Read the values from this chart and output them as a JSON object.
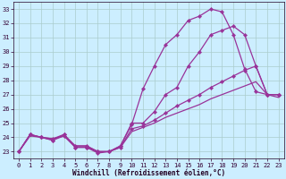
{
  "xlabel": "Windchill (Refroidissement éolien,°C)",
  "bg_color": "#cceeff",
  "grid_color": "#aacccc",
  "line_color": "#993399",
  "xlim_min": -0.5,
  "xlim_max": 23.5,
  "ylim_min": 22.5,
  "ylim_max": 33.5,
  "yticks": [
    23,
    24,
    25,
    26,
    27,
    28,
    29,
    30,
    31,
    32,
    33
  ],
  "xticks": [
    0,
    1,
    2,
    3,
    4,
    5,
    6,
    7,
    8,
    9,
    10,
    11,
    12,
    13,
    14,
    15,
    16,
    17,
    18,
    19,
    20,
    21,
    22,
    23
  ],
  "line1_y": [
    23.0,
    24.2,
    24.0,
    23.8,
    24.1,
    23.3,
    23.3,
    22.9,
    23.0,
    23.4,
    24.9,
    27.4,
    29.0,
    30.5,
    31.2,
    32.2,
    32.5,
    33.0,
    32.8,
    31.2,
    28.8,
    27.2,
    27.0,
    27.0
  ],
  "line2_y": [
    23.0,
    24.2,
    24.0,
    23.8,
    24.2,
    23.3,
    23.3,
    23.0,
    23.0,
    23.4,
    25.0,
    25.0,
    25.8,
    27.0,
    27.5,
    29.0,
    30.0,
    31.2,
    31.5,
    31.8,
    31.2,
    29.0,
    27.0,
    27.0
  ],
  "line3_y": [
    23.0,
    24.2,
    24.0,
    23.9,
    24.2,
    23.4,
    23.4,
    23.0,
    23.0,
    23.3,
    24.6,
    24.8,
    25.2,
    25.7,
    26.2,
    26.6,
    27.0,
    27.5,
    27.9,
    28.3,
    28.7,
    29.0,
    27.0,
    27.0
  ],
  "line4_y": [
    23.0,
    24.1,
    24.0,
    23.9,
    24.1,
    23.4,
    23.4,
    23.0,
    23.0,
    23.3,
    24.4,
    24.7,
    25.0,
    25.4,
    25.7,
    26.0,
    26.3,
    26.7,
    27.0,
    27.3,
    27.6,
    27.9,
    27.0,
    26.8
  ]
}
